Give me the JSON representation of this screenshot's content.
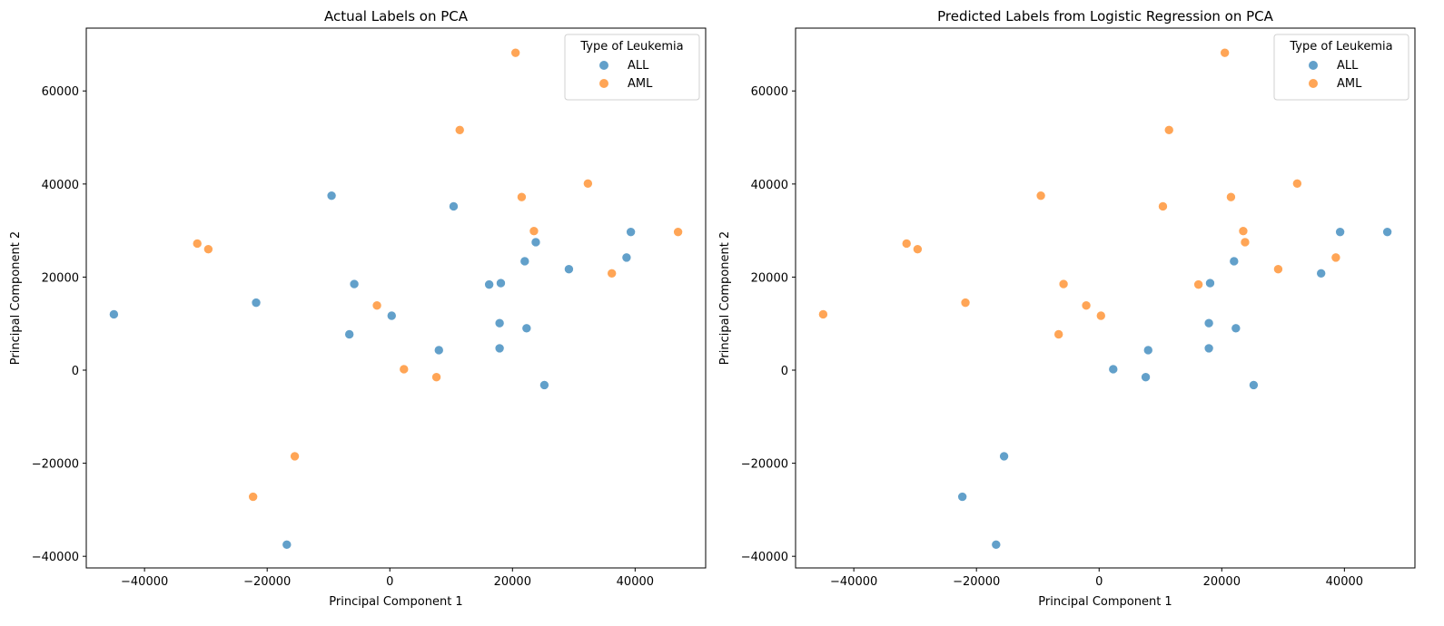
{
  "colors": {
    "ALL": "#1f77b4",
    "AML": "#ff7f0e"
  },
  "chart_data": [
    {
      "type": "scatter",
      "title": "Actual Labels on PCA",
      "xlabel": "Principal Component 1",
      "ylabel": "Principal Component 2",
      "xlim": [
        -49500,
        51500
      ],
      "ylim": [
        -42500,
        73500
      ],
      "xticks": [
        -40000,
        -20000,
        0,
        20000,
        40000
      ],
      "xtick_labels": [
        "−40000",
        "−20000",
        "0",
        "20000",
        "40000"
      ],
      "yticks": [
        -40000,
        -20000,
        0,
        20000,
        40000,
        60000
      ],
      "ytick_labels": [
        "−40000",
        "−20000",
        "0",
        "20000",
        "40000",
        "60000"
      ],
      "legend": {
        "title": "Type of Leukemia",
        "entries": [
          "ALL",
          "AML"
        ],
        "position": "top-right"
      },
      "series": [
        {
          "name": "ALL",
          "x": [
            -45000,
            -21800,
            -16800,
            -9500,
            -6600,
            -5800,
            300,
            8000,
            10400,
            16200,
            18100,
            17900,
            17900,
            22000,
            22300,
            23800,
            25200,
            29200,
            38600,
            39300
          ],
          "y": [
            12000,
            14500,
            -37500,
            37500,
            7700,
            18500,
            11700,
            4300,
            35200,
            18400,
            18700,
            10100,
            4700,
            23400,
            9000,
            27500,
            -3200,
            21700,
            24200,
            29700
          ]
        },
        {
          "name": "AML",
          "x": [
            -31400,
            -29600,
            -22300,
            -15500,
            -2100,
            2300,
            7600,
            11400,
            20500,
            21500,
            23500,
            32300,
            36200,
            47000
          ],
          "y": [
            27200,
            26000,
            -27200,
            -18500,
            13900,
            200,
            -1500,
            51600,
            68200,
            37200,
            29900,
            40100,
            20800,
            29700
          ]
        }
      ]
    },
    {
      "type": "scatter",
      "title": "Predicted Labels from Logistic Regression on PCA",
      "xlabel": "Principal Component 1",
      "ylabel": "Principal Component 2",
      "xlim": [
        -49500,
        51500
      ],
      "ylim": [
        -42500,
        73500
      ],
      "xticks": [
        -40000,
        -20000,
        0,
        20000,
        40000
      ],
      "xtick_labels": [
        "−40000",
        "−20000",
        "0",
        "20000",
        "40000"
      ],
      "yticks": [
        -40000,
        -20000,
        0,
        20000,
        40000,
        60000
      ],
      "ytick_labels": [
        "−40000",
        "−20000",
        "0",
        "20000",
        "40000",
        "60000"
      ],
      "legend": {
        "title": "Type of Leukemia",
        "entries": [
          "ALL",
          "AML"
        ],
        "position": "top-right"
      },
      "series": [
        {
          "name": "ALL",
          "x": [
            -22300,
            -16800,
            -15500,
            2300,
            7600,
            8000,
            17900,
            17900,
            18100,
            22000,
            22300,
            25200,
            36200,
            39300,
            47000
          ],
          "y": [
            -27200,
            -37500,
            -18500,
            200,
            -1500,
            4300,
            10100,
            4700,
            18700,
            23400,
            9000,
            -3200,
            20800,
            29700,
            29700
          ]
        },
        {
          "name": "AML",
          "x": [
            -45000,
            -31400,
            -29600,
            -21800,
            -9500,
            -6600,
            -5800,
            -2100,
            300,
            10400,
            11400,
            16200,
            20500,
            21500,
            23500,
            23800,
            29200,
            32300,
            38600
          ],
          "y": [
            12000,
            27200,
            26000,
            14500,
            37500,
            7700,
            18500,
            13900,
            11700,
            35200,
            51600,
            18400,
            68200,
            37200,
            29900,
            27500,
            21700,
            40100,
            24200
          ]
        }
      ]
    }
  ]
}
